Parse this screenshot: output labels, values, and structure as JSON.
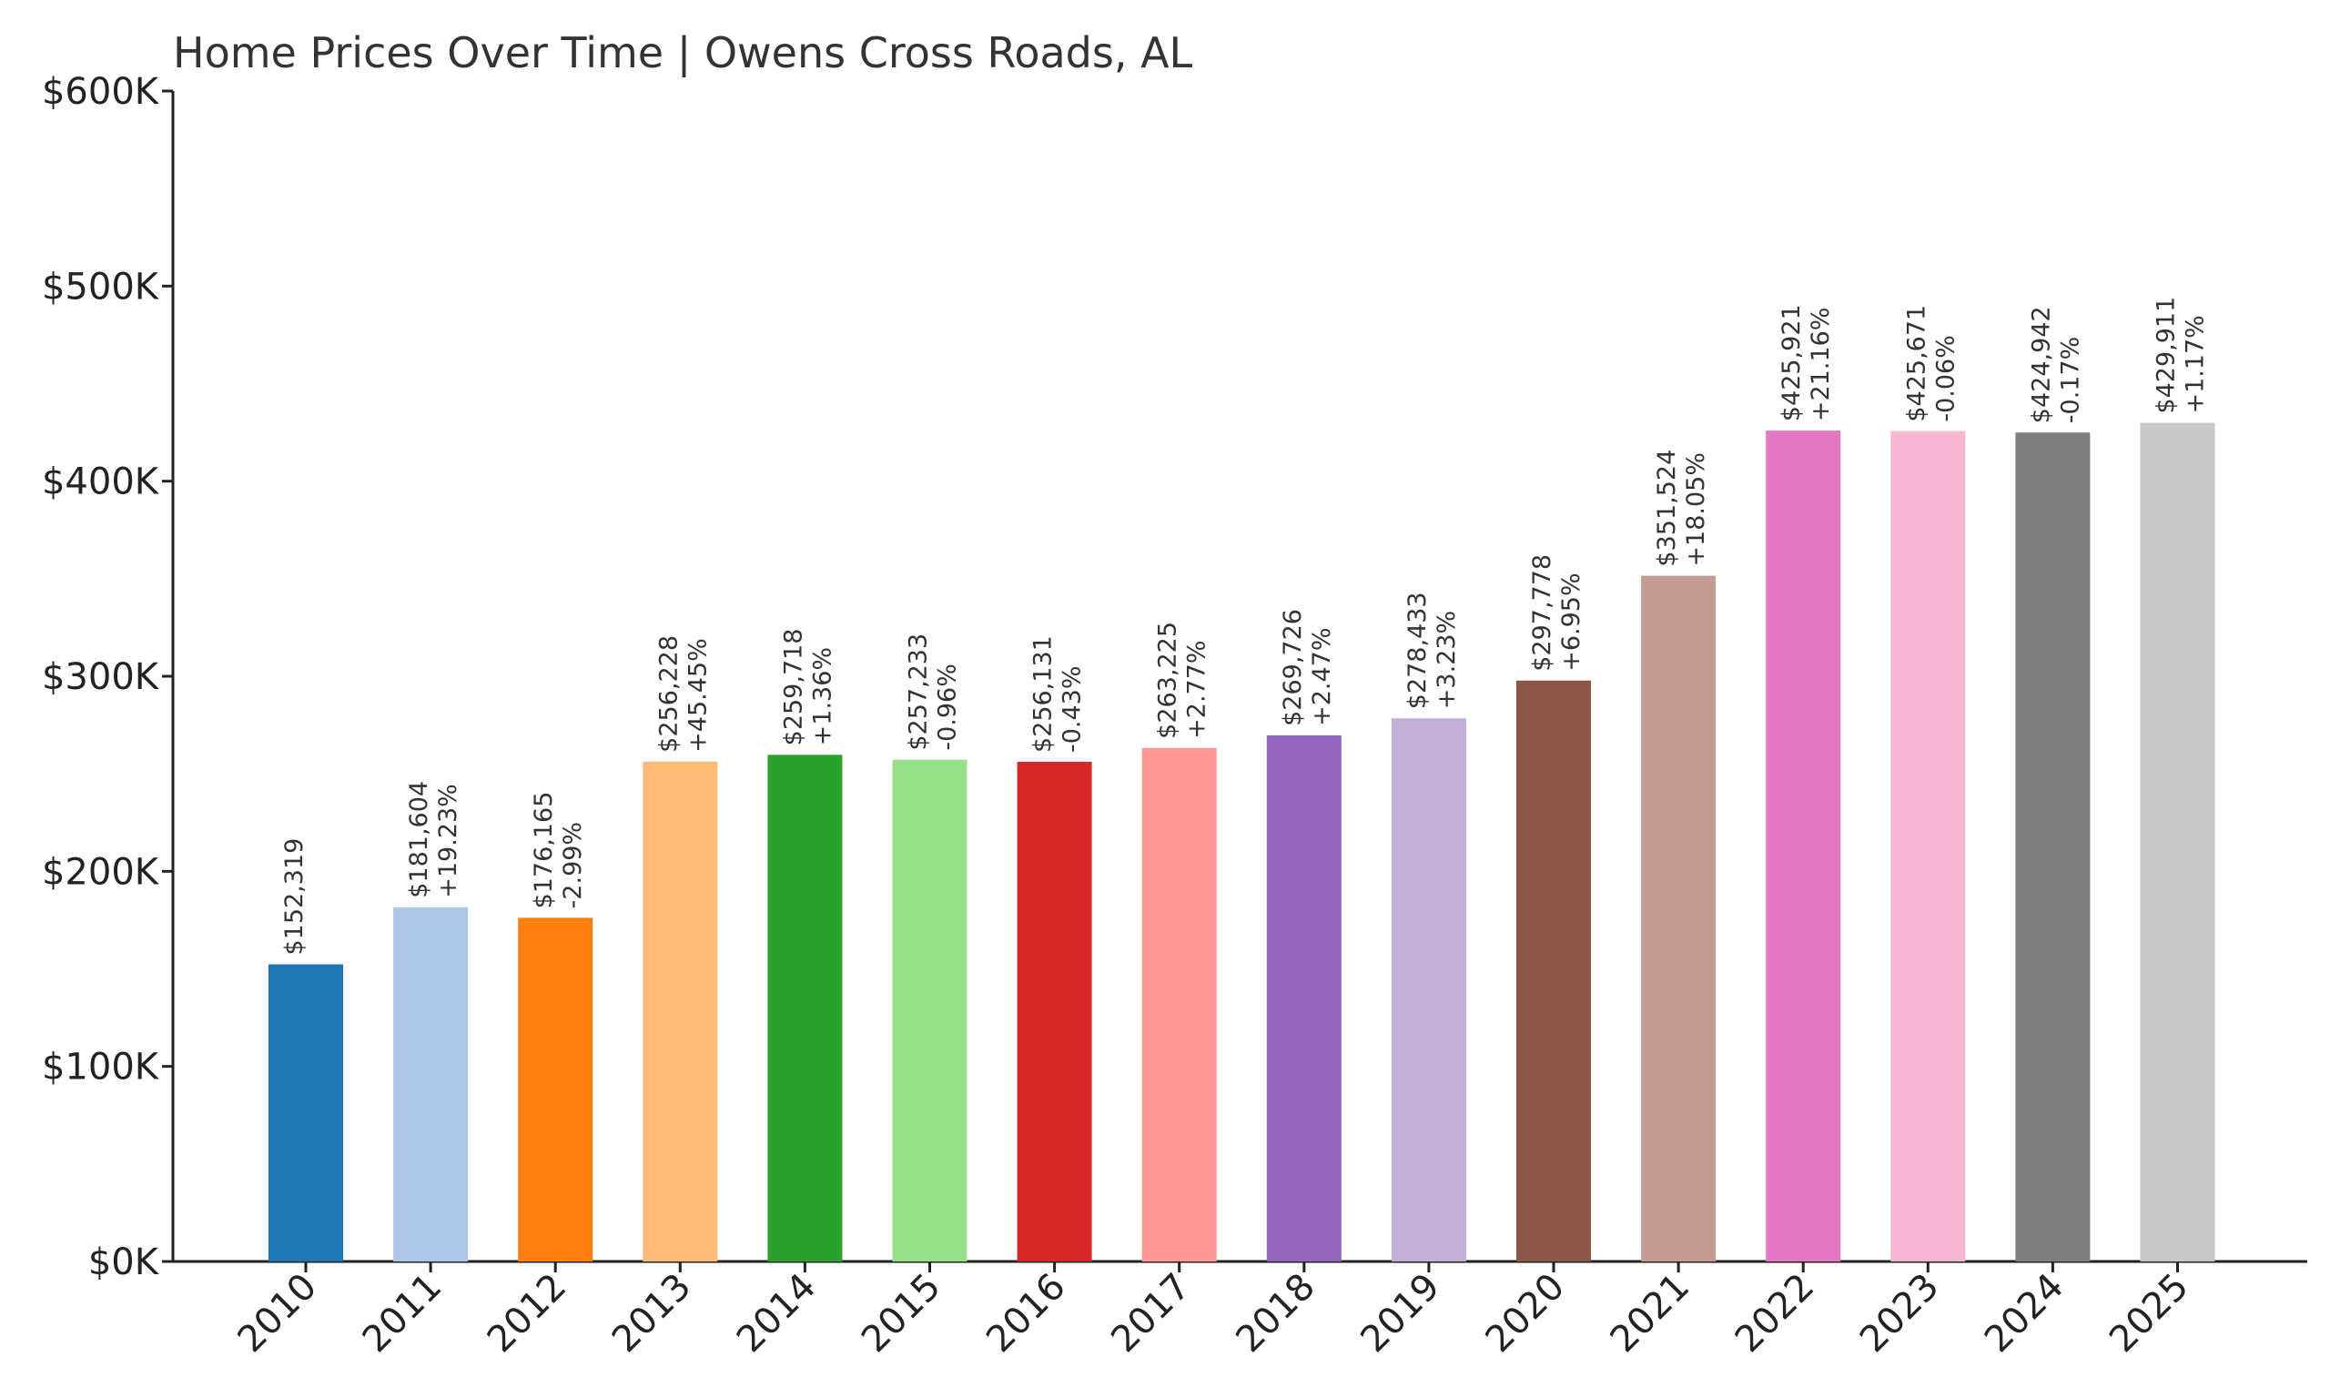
{
  "chart_data": {
    "type": "bar",
    "title": "Home Prices Over Time | Owens Cross Roads, AL",
    "xlabel": "",
    "ylabel": "",
    "ylim": [
      0,
      600000
    ],
    "yticks": [
      "$0K",
      "$100K",
      "$200K",
      "$300K",
      "$400K",
      "$500K",
      "$600K"
    ],
    "grid": false,
    "legend": "none",
    "categories": [
      "2010",
      "2011",
      "2012",
      "2013",
      "2014",
      "2015",
      "2016",
      "2017",
      "2018",
      "2019",
      "2020",
      "2021",
      "2022",
      "2023",
      "2024",
      "2025"
    ],
    "values": [
      152319,
      181604,
      176165,
      256228,
      259718,
      257233,
      256131,
      263225,
      269726,
      278433,
      297778,
      351524,
      425921,
      425671,
      424942,
      429911
    ],
    "value_labels": [
      "$152,319",
      "$181,604",
      "$176,165",
      "$256,228",
      "$259,718",
      "$257,233",
      "$256,131",
      "$263,225",
      "$269,726",
      "$278,433",
      "$297,778",
      "$351,524",
      "$425,921",
      "$425,671",
      "$424,942",
      "$429,911"
    ],
    "change_labels": [
      "",
      "+19.23%",
      "-2.99%",
      "+45.45%",
      "+1.36%",
      "-0.96%",
      "-0.43%",
      "+2.77%",
      "+2.47%",
      "+3.23%",
      "+6.95%",
      "+18.05%",
      "+21.16%",
      "-0.06%",
      "-0.17%",
      "+1.17%"
    ],
    "colors": [
      "#1f77b4",
      "#aec7e8",
      "#ff7f0e",
      "#ffbb78",
      "#2ca02c",
      "#98df8a",
      "#d62728",
      "#ff9896",
      "#9467bd",
      "#c5b0d5",
      "#8c564b",
      "#c49c94",
      "#e377c2",
      "#f7b6d2",
      "#7f7f7f",
      "#c7c7c7"
    ]
  }
}
